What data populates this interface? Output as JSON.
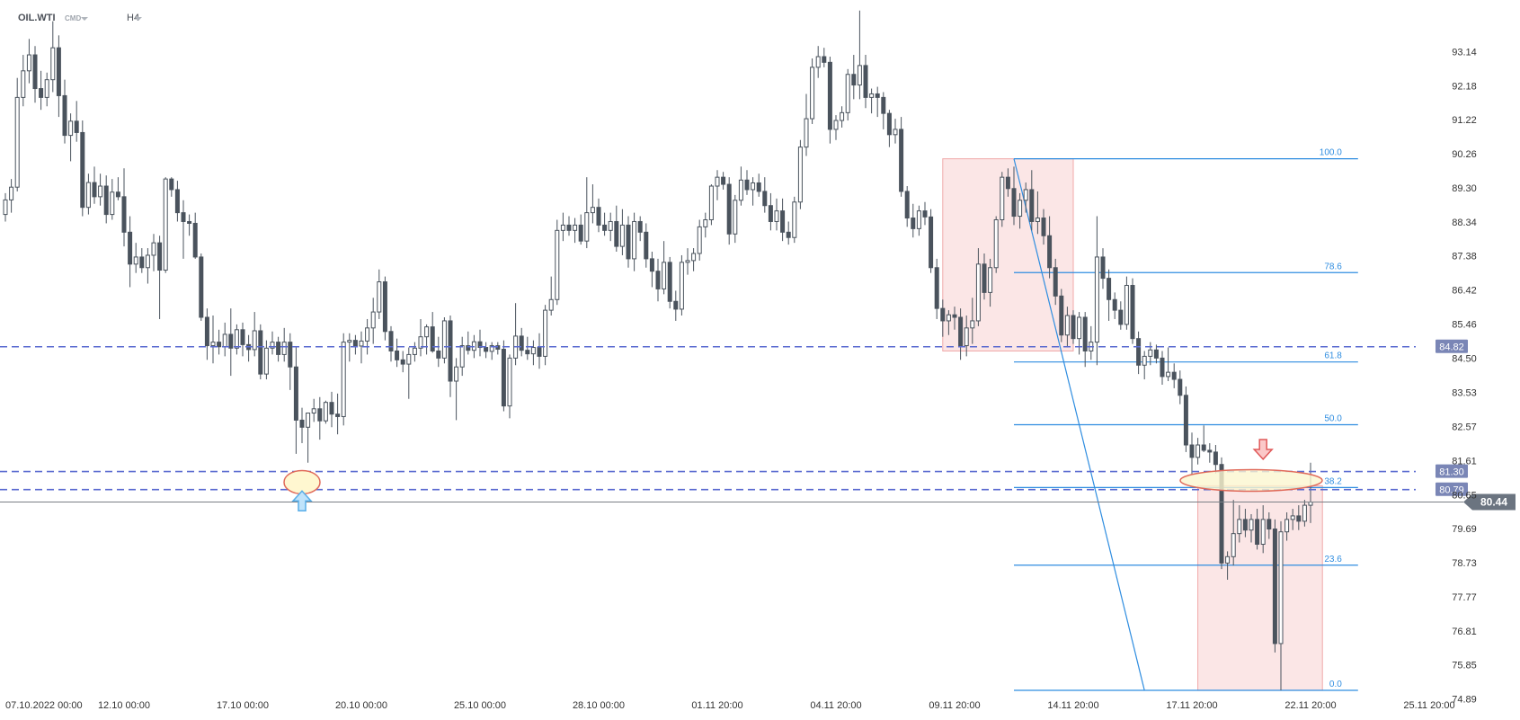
{
  "header": {
    "symbol": "OIL.WTI",
    "type_label": "CMD",
    "timeframe": "H4"
  },
  "colors": {
    "candle": "#4a535d",
    "level_line": "#5a6ad0",
    "fib_line": "#2f8de0",
    "fib_label": "#2f8de0",
    "zone_fill": "#f8d2d2",
    "price_tag": "#7a86b6",
    "current_tag": "#6b7480",
    "arrow_up": "#58aee8",
    "arrow_down": "#e05a5a"
  },
  "chart_data": {
    "type": "candlestick",
    "ylim": [
      74.89,
      94.8
    ],
    "y_ticks": [
      "93.14",
      "92.18",
      "91.22",
      "90.26",
      "89.30",
      "88.34",
      "87.38",
      "86.42",
      "85.46",
      "84.50",
      "83.53",
      "82.57",
      "81.61",
      "80.65",
      "79.69",
      "78.73",
      "77.77",
      "76.81",
      "75.85",
      "74.89"
    ],
    "x_ticks": [
      "07.10.2022 00:00",
      "12.10 00:00",
      "17.10 00:00",
      "20.10 00:00",
      "25.10 00:00",
      "28.10 00:00",
      "01.11 20:00",
      "04.11 20:00",
      "09.11 20:00",
      "14.11 20:00",
      "17.11 20:00",
      "22.11 20:00",
      "25.11 20:00"
    ],
    "x_tick_index": [
      0,
      20,
      40,
      60,
      80,
      100,
      120,
      140,
      160,
      180,
      200,
      220,
      240
    ],
    "horizontal_levels": [
      {
        "label": "84.82",
        "value": 84.82
      },
      {
        "label": "81.30",
        "value": 81.3
      },
      {
        "label": "80.79",
        "value": 80.79
      }
    ],
    "current_price": {
      "label": "80.44",
      "value": 80.44
    },
    "fibonacci": {
      "high": 90.12,
      "low": 75.13,
      "start_index": 170,
      "end_index": 228,
      "levels": [
        {
          "label": "100.0",
          "value": 90.12
        },
        {
          "label": "78.6",
          "value": 86.91
        },
        {
          "label": "61.8",
          "value": 84.39
        },
        {
          "label": "50.0",
          "value": 82.62
        },
        {
          "label": "38.2",
          "value": 80.85
        },
        {
          "label": "23.6",
          "value": 78.66
        },
        {
          "label": "0.0",
          "value": 75.13
        }
      ]
    },
    "trend_line": {
      "from_index": 170,
      "from_value": 90.12,
      "to_index": 192,
      "to_value": 75.13
    },
    "zones": [
      {
        "from_index": 158,
        "to_index": 180,
        "high": 90.12,
        "low": 84.7
      },
      {
        "from_index": 201,
        "to_index": 222,
        "high": 80.9,
        "low": 75.13
      }
    ],
    "markers": [
      {
        "kind": "support-circle",
        "index": 50,
        "value": 81.0
      },
      {
        "kind": "up-arrow",
        "index": 50,
        "value": 80.55
      },
      {
        "kind": "resistance-ellipse",
        "index": 210,
        "value": 81.05
      },
      {
        "kind": "down-arrow",
        "index": 212,
        "value": 81.9
      }
    ],
    "candles": [
      [
        88.55,
        89.15,
        88.35,
        88.96
      ],
      [
        88.96,
        89.55,
        88.6,
        89.32
      ],
      [
        89.32,
        92.4,
        89.2,
        91.85
      ],
      [
        91.85,
        93.05,
        91.6,
        92.6
      ],
      [
        92.6,
        93.5,
        92.25,
        93.05
      ],
      [
        93.05,
        93.3,
        91.7,
        92.1
      ],
      [
        92.1,
        92.6,
        91.5,
        91.85
      ],
      [
        91.85,
        92.55,
        91.6,
        92.35
      ],
      [
        92.35,
        94.0,
        92.0,
        93.25
      ],
      [
        93.25,
        93.6,
        91.3,
        91.9
      ],
      [
        91.9,
        92.35,
        90.55,
        90.78
      ],
      [
        90.78,
        91.4,
        90.05,
        91.18
      ],
      [
        91.18,
        91.75,
        90.6,
        90.86
      ],
      [
        90.86,
        91.2,
        88.5,
        88.75
      ],
      [
        88.75,
        89.7,
        88.55,
        89.45
      ],
      [
        89.45,
        89.9,
        88.85,
        89.05
      ],
      [
        89.05,
        89.7,
        88.8,
        89.35
      ],
      [
        89.35,
        89.65,
        88.3,
        88.55
      ],
      [
        88.55,
        89.55,
        88.4,
        89.18
      ],
      [
        89.18,
        89.6,
        88.95,
        89.05
      ],
      [
        89.05,
        89.85,
        87.65,
        88.05
      ],
      [
        88.05,
        88.5,
        86.5,
        87.15
      ],
      [
        87.15,
        87.75,
        86.9,
        87.35
      ],
      [
        87.35,
        87.6,
        86.9,
        87.05
      ],
      [
        87.05,
        87.6,
        86.6,
        87.4
      ],
      [
        87.4,
        88.0,
        86.95,
        87.75
      ],
      [
        87.75,
        87.95,
        85.6,
        86.98
      ],
      [
        86.98,
        89.6,
        86.9,
        89.55
      ],
      [
        89.55,
        89.6,
        89.05,
        89.25
      ],
      [
        89.25,
        89.5,
        88.35,
        88.6
      ],
      [
        88.6,
        88.95,
        87.3,
        88.35
      ],
      [
        88.35,
        88.55,
        87.95,
        88.3
      ],
      [
        88.3,
        88.6,
        87.3,
        87.35
      ],
      [
        87.35,
        87.45,
        85.55,
        85.65
      ],
      [
        85.65,
        85.9,
        84.45,
        84.85
      ],
      [
        84.85,
        85.7,
        84.35,
        84.95
      ],
      [
        84.95,
        85.3,
        84.6,
        84.82
      ],
      [
        84.82,
        85.5,
        84.55,
        85.17
      ],
      [
        85.17,
        85.9,
        84.0,
        84.78
      ],
      [
        84.78,
        85.45,
        84.6,
        85.3
      ],
      [
        85.3,
        85.5,
        84.55,
        84.88
      ],
      [
        84.88,
        85.15,
        84.4,
        84.74
      ],
      [
        84.74,
        85.8,
        84.55,
        85.27
      ],
      [
        85.27,
        85.45,
        83.9,
        84.05
      ],
      [
        84.05,
        85.0,
        83.9,
        84.78
      ],
      [
        84.78,
        85.25,
        84.6,
        84.95
      ],
      [
        84.95,
        85.1,
        84.4,
        84.6
      ],
      [
        84.6,
        85.35,
        84.4,
        84.95
      ],
      [
        84.95,
        85.2,
        83.6,
        84.25
      ],
      [
        84.25,
        84.8,
        81.8,
        82.75
      ],
      [
        82.75,
        83.1,
        82.1,
        82.55
      ],
      [
        82.55,
        82.9,
        81.55,
        82.95
      ],
      [
        82.95,
        83.35,
        82.7,
        83.07
      ],
      [
        83.07,
        83.4,
        82.2,
        82.73
      ],
      [
        82.73,
        83.3,
        82.65,
        83.25
      ],
      [
        83.25,
        83.55,
        82.55,
        82.92
      ],
      [
        82.92,
        83.5,
        82.35,
        82.85
      ],
      [
        82.85,
        85.2,
        82.6,
        84.95
      ],
      [
        84.95,
        85.2,
        84.4,
        85.0
      ],
      [
        85.0,
        85.15,
        84.6,
        84.84
      ],
      [
        84.84,
        85.25,
        84.35,
        84.98
      ],
      [
        84.98,
        85.6,
        84.6,
        85.35
      ],
      [
        85.35,
        86.2,
        84.9,
        85.8
      ],
      [
        85.8,
        87.0,
        85.6,
        86.65
      ],
      [
        86.65,
        86.8,
        85.0,
        85.25
      ],
      [
        85.25,
        85.4,
        84.4,
        84.7
      ],
      [
        84.7,
        85.05,
        84.25,
        84.45
      ],
      [
        84.45,
        84.7,
        84.1,
        84.33
      ],
      [
        84.33,
        84.8,
        83.35,
        84.6
      ],
      [
        84.6,
        84.95,
        84.4,
        84.78
      ],
      [
        84.78,
        85.6,
        84.55,
        85.1
      ],
      [
        85.1,
        85.45,
        84.6,
        85.38
      ],
      [
        85.38,
        85.8,
        84.65,
        84.7
      ],
      [
        84.7,
        85.1,
        84.25,
        84.5
      ],
      [
        84.5,
        85.65,
        84.35,
        85.55
      ],
      [
        85.55,
        85.7,
        83.4,
        83.85
      ],
      [
        83.85,
        84.5,
        82.75,
        84.25
      ],
      [
        84.25,
        85.1,
        84.0,
        84.85
      ],
      [
        84.85,
        85.25,
        84.6,
        84.72
      ],
      [
        84.72,
        85.15,
        84.5,
        84.96
      ],
      [
        84.96,
        85.3,
        84.55,
        84.8
      ],
      [
        84.8,
        84.95,
        84.5,
        84.69
      ],
      [
        84.69,
        84.95,
        84.45,
        84.85
      ],
      [
        84.85,
        84.95,
        84.6,
        84.75
      ],
      [
        84.75,
        85.0,
        83.0,
        83.15
      ],
      [
        83.15,
        84.6,
        82.8,
        84.5
      ],
      [
        84.5,
        86.05,
        84.3,
        85.12
      ],
      [
        85.12,
        85.35,
        84.55,
        84.72
      ],
      [
        84.72,
        85.1,
        84.45,
        84.62
      ],
      [
        84.62,
        85.0,
        84.3,
        84.8
      ],
      [
        84.8,
        85.2,
        84.2,
        84.55
      ],
      [
        84.55,
        86.0,
        84.3,
        85.85
      ],
      [
        85.85,
        86.8,
        85.7,
        86.15
      ],
      [
        86.15,
        88.4,
        86.0,
        88.1
      ],
      [
        88.1,
        88.6,
        87.8,
        88.25
      ],
      [
        88.25,
        88.5,
        87.95,
        88.1
      ],
      [
        88.1,
        88.45,
        87.75,
        88.25
      ],
      [
        88.25,
        88.55,
        87.7,
        87.8
      ],
      [
        87.8,
        89.6,
        87.6,
        88.6
      ],
      [
        88.6,
        89.4,
        88.3,
        88.75
      ],
      [
        88.75,
        89.0,
        88.05,
        88.25
      ],
      [
        88.25,
        88.6,
        87.95,
        88.1
      ],
      [
        88.1,
        88.6,
        87.8,
        88.35
      ],
      [
        88.35,
        88.8,
        87.5,
        87.65
      ],
      [
        87.65,
        88.7,
        87.4,
        88.25
      ],
      [
        88.25,
        88.5,
        87.05,
        87.3
      ],
      [
        87.3,
        88.6,
        86.95,
        88.35
      ],
      [
        88.35,
        88.5,
        87.8,
        88.05
      ],
      [
        88.05,
        88.3,
        87.05,
        87.3
      ],
      [
        87.3,
        87.5,
        86.5,
        86.95
      ],
      [
        86.95,
        87.3,
        86.1,
        86.45
      ],
      [
        86.45,
        87.8,
        86.3,
        87.2
      ],
      [
        87.2,
        87.35,
        85.9,
        86.1
      ],
      [
        86.1,
        86.4,
        85.55,
        85.88
      ],
      [
        85.88,
        87.4,
        85.7,
        87.2
      ],
      [
        87.2,
        87.6,
        86.85,
        87.25
      ],
      [
        87.25,
        87.6,
        86.95,
        87.45
      ],
      [
        87.45,
        88.4,
        87.25,
        88.2
      ],
      [
        88.2,
        88.6,
        87.9,
        88.4
      ],
      [
        88.4,
        89.4,
        88.25,
        89.35
      ],
      [
        89.35,
        89.8,
        88.95,
        89.6
      ],
      [
        89.6,
        89.75,
        89.25,
        89.4
      ],
      [
        89.4,
        89.6,
        87.7,
        88.0
      ],
      [
        88.0,
        89.1,
        87.75,
        88.95
      ],
      [
        88.95,
        89.9,
        88.8,
        89.52
      ],
      [
        89.52,
        89.8,
        89.1,
        89.25
      ],
      [
        89.25,
        89.6,
        88.8,
        89.44
      ],
      [
        89.44,
        89.7,
        89.05,
        89.2
      ],
      [
        89.2,
        89.6,
        88.6,
        88.8
      ],
      [
        88.8,
        89.15,
        88.1,
        88.35
      ],
      [
        88.35,
        89.0,
        88.1,
        88.65
      ],
      [
        88.65,
        89.0,
        87.8,
        88.05
      ],
      [
        88.05,
        88.35,
        87.7,
        87.9
      ],
      [
        87.9,
        89.05,
        87.75,
        88.9
      ],
      [
        88.9,
        90.65,
        88.7,
        90.45
      ],
      [
        90.45,
        91.95,
        90.2,
        91.25
      ],
      [
        91.25,
        92.95,
        91.1,
        92.7
      ],
      [
        92.7,
        93.3,
        92.4,
        93.0
      ],
      [
        93.0,
        93.25,
        92.7,
        92.84
      ],
      [
        92.84,
        93.0,
        90.55,
        90.95
      ],
      [
        90.95,
        91.35,
        90.65,
        91.2
      ],
      [
        91.2,
        91.6,
        91.0,
        91.42
      ],
      [
        91.42,
        92.65,
        91.2,
        92.5
      ],
      [
        92.5,
        93.05,
        91.8,
        92.2
      ],
      [
        92.2,
        94.3,
        91.8,
        92.75
      ],
      [
        92.75,
        93.05,
        91.55,
        91.85
      ],
      [
        91.85,
        92.1,
        91.4,
        91.95
      ],
      [
        91.95,
        92.15,
        91.3,
        91.85
      ],
      [
        91.85,
        92.0,
        90.95,
        91.4
      ],
      [
        91.4,
        91.5,
        90.45,
        90.8
      ],
      [
        90.8,
        91.25,
        90.55,
        90.95
      ],
      [
        90.95,
        91.3,
        89.05,
        89.2
      ],
      [
        89.2,
        89.35,
        88.2,
        88.45
      ],
      [
        88.45,
        88.85,
        87.9,
        88.15
      ],
      [
        88.15,
        88.8,
        87.95,
        88.65
      ],
      [
        88.65,
        88.9,
        88.25,
        88.48
      ],
      [
        88.48,
        88.7,
        86.9,
        87.05
      ],
      [
        87.05,
        87.3,
        85.6,
        85.9
      ],
      [
        85.9,
        86.15,
        85.1,
        85.55
      ],
      [
        85.55,
        85.85,
        85.15,
        85.72
      ],
      [
        85.72,
        85.95,
        85.3,
        85.65
      ],
      [
        85.65,
        85.9,
        84.45,
        84.85
      ],
      [
        84.85,
        85.7,
        84.55,
        85.35
      ],
      [
        85.35,
        86.2,
        84.9,
        85.55
      ],
      [
        85.55,
        87.6,
        85.4,
        87.15
      ],
      [
        87.15,
        87.45,
        86.15,
        86.35
      ],
      [
        86.35,
        87.3,
        85.95,
        87.05
      ],
      [
        87.05,
        88.5,
        86.9,
        88.4
      ],
      [
        88.4,
        89.75,
        88.2,
        89.6
      ],
      [
        89.6,
        89.85,
        89.05,
        89.28
      ],
      [
        89.28,
        89.9,
        88.25,
        88.5
      ],
      [
        88.5,
        89.15,
        88.15,
        88.95
      ],
      [
        88.95,
        89.45,
        88.6,
        89.25
      ],
      [
        89.25,
        89.8,
        88.1,
        88.35
      ],
      [
        88.35,
        89.2,
        88.0,
        88.45
      ],
      [
        88.45,
        88.7,
        87.7,
        87.95
      ],
      [
        87.95,
        88.5,
        86.75,
        87.05
      ],
      [
        87.05,
        87.3,
        86.0,
        86.25
      ],
      [
        86.25,
        86.45,
        84.95,
        85.15
      ],
      [
        85.15,
        85.95,
        84.8,
        85.7
      ],
      [
        85.7,
        85.85,
        84.9,
        85.05
      ],
      [
        85.05,
        85.8,
        84.6,
        85.65
      ],
      [
        85.65,
        85.8,
        84.25,
        84.7
      ],
      [
        84.7,
        85.4,
        84.45,
        84.95
      ],
      [
        84.95,
        88.5,
        84.3,
        87.35
      ],
      [
        87.35,
        87.6,
        86.45,
        86.75
      ],
      [
        86.75,
        87.0,
        85.55,
        86.15
      ],
      [
        86.15,
        86.35,
        85.6,
        85.85
      ],
      [
        85.85,
        86.1,
        85.3,
        85.45
      ],
      [
        85.45,
        86.8,
        85.3,
        86.55
      ],
      [
        86.55,
        86.75,
        84.9,
        85.05
      ],
      [
        85.05,
        85.25,
        84.05,
        84.3
      ],
      [
        84.3,
        84.7,
        83.9,
        84.55
      ],
      [
        84.55,
        84.95,
        84.3,
        84.73
      ],
      [
        84.73,
        84.88,
        84.35,
        84.5
      ],
      [
        84.5,
        84.7,
        83.75,
        83.98
      ],
      [
        83.98,
        84.8,
        83.85,
        84.1
      ],
      [
        84.1,
        84.35,
        83.65,
        83.9
      ],
      [
        83.9,
        84.15,
        83.2,
        83.45
      ],
      [
        83.45,
        83.7,
        81.85,
        82.05
      ],
      [
        82.05,
        82.4,
        81.2,
        81.7
      ],
      [
        81.7,
        82.25,
        81.5,
        82.05
      ],
      [
        82.05,
        82.6,
        81.85,
        81.9
      ],
      [
        81.9,
        82.1,
        81.55,
        81.85
      ],
      [
        81.85,
        82.05,
        81.25,
        81.5
      ],
      [
        81.5,
        81.7,
        78.55,
        78.72
      ],
      [
        78.72,
        79.05,
        78.25,
        78.9
      ],
      [
        78.9,
        80.5,
        78.65,
        79.55
      ],
      [
        79.55,
        80.35,
        79.3,
        79.95
      ],
      [
        79.95,
        80.25,
        79.45,
        79.65
      ],
      [
        79.65,
        80.1,
        79.3,
        79.95
      ],
      [
        79.95,
        80.25,
        79.1,
        79.25
      ],
      [
        79.25,
        80.35,
        79.0,
        79.95
      ],
      [
        79.95,
        80.15,
        79.4,
        79.68
      ],
      [
        79.68,
        79.95,
        76.2,
        76.45
      ],
      [
        76.45,
        79.9,
        75.13,
        79.6
      ],
      [
        79.6,
        80.15,
        79.35,
        79.95
      ],
      [
        79.95,
        80.25,
        79.65,
        80.05
      ],
      [
        80.05,
        80.35,
        79.65,
        79.9
      ],
      [
        79.9,
        80.5,
        79.75,
        80.35
      ],
      [
        80.35,
        81.55,
        79.85,
        80.44
      ]
    ]
  }
}
